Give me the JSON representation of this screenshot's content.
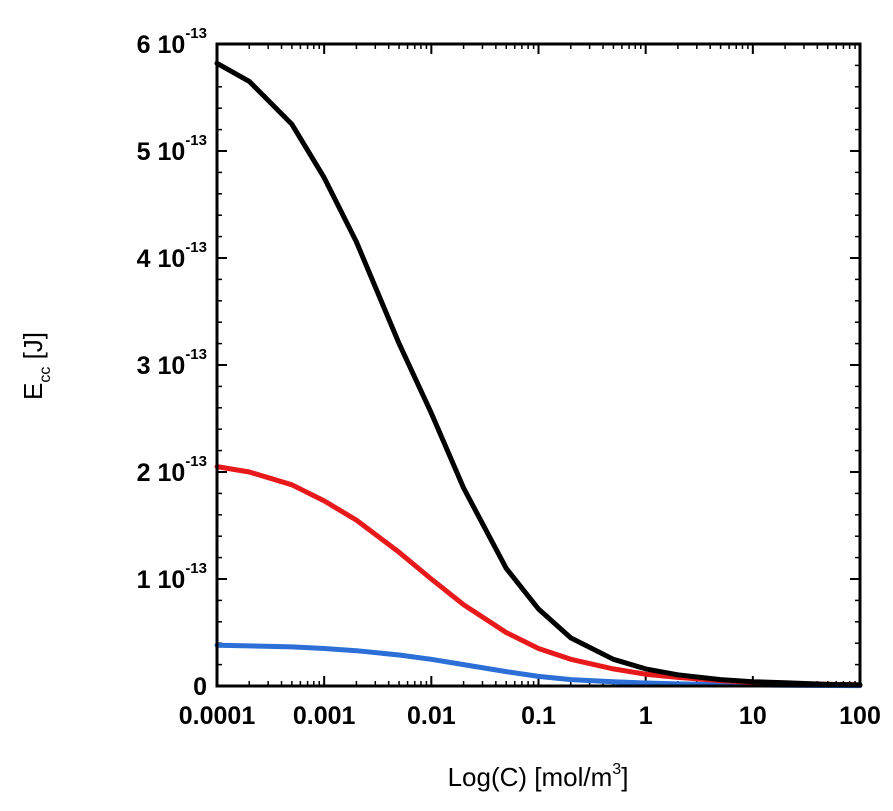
{
  "chart_data": {
    "type": "line",
    "title": "",
    "xscale": "log",
    "xlim": [
      0.0001,
      100
    ],
    "ylim": [
      0,
      6e-13
    ],
    "x_ticks": [
      0.0001,
      0.001,
      0.01,
      0.1,
      1,
      10,
      100
    ],
    "x_tick_labels": [
      "0.0001",
      "0.001",
      "0.01",
      "0.1",
      "1",
      "10",
      "100"
    ],
    "y_ticks": [
      0,
      1e-13,
      2e-13,
      3e-13,
      4e-13,
      5e-13,
      6e-13
    ],
    "y_tick_labels": [
      {
        "mantissa": "0",
        "exponent": ""
      },
      {
        "mantissa": "1 10",
        "exponent": "-13"
      },
      {
        "mantissa": "2 10",
        "exponent": "-13"
      },
      {
        "mantissa": "3 10",
        "exponent": "-13"
      },
      {
        "mantissa": "4 10",
        "exponent": "-13"
      },
      {
        "mantissa": "5 10",
        "exponent": "-13"
      },
      {
        "mantissa": "6 10",
        "exponent": "-13"
      }
    ],
    "xlabel": {
      "main": "Log(C) [mol/m",
      "sup": "3",
      "end": "]"
    },
    "ylabel": {
      "main": "E",
      "sub": "cc",
      "end": " [J]"
    },
    "grid": false,
    "series": [
      {
        "name": "black",
        "color": "#000000",
        "x": [
          0.0001,
          0.0002,
          0.0005,
          0.001,
          0.002,
          0.005,
          0.01,
          0.02,
          0.05,
          0.1,
          0.2,
          0.5,
          1,
          2,
          5,
          10,
          20,
          50,
          100
        ],
        "y": [
          5.82e-13,
          5.65e-13,
          5.25e-13,
          4.75e-13,
          4.15e-13,
          3.2e-13,
          2.55e-13,
          1.85e-13,
          1.1e-13,
          7.2e-14,
          4.5e-14,
          2.5e-14,
          1.6e-14,
          1.05e-14,
          6e-15,
          4e-15,
          3e-15,
          1.5e-15,
          1e-15
        ]
      },
      {
        "name": "red",
        "color": "#e8191b",
        "x": [
          0.0001,
          0.0002,
          0.0005,
          0.001,
          0.002,
          0.005,
          0.01,
          0.02,
          0.05,
          0.1,
          0.2,
          0.5,
          1,
          2,
          5,
          10,
          20,
          50,
          100
        ],
        "y": [
          2.05e-13,
          2e-13,
          1.88e-13,
          1.73e-13,
          1.55e-13,
          1.25e-13,
          1e-13,
          7.6e-14,
          5e-14,
          3.5e-14,
          2.5e-14,
          1.6e-14,
          1.1e-14,
          8e-15,
          5e-15,
          3.5e-15,
          2.5e-15,
          1.5e-15,
          1e-15
        ]
      },
      {
        "name": "blue",
        "color": "#2c6fd6",
        "x": [
          0.0001,
          0.0002,
          0.0005,
          0.001,
          0.002,
          0.005,
          0.01,
          0.02,
          0.05,
          0.1,
          0.2,
          0.5,
          1,
          2,
          5,
          10,
          20,
          50,
          100
        ],
        "y": [
          3.8e-14,
          3.75e-14,
          3.65e-14,
          3.5e-14,
          3.3e-14,
          2.9e-14,
          2.5e-14,
          2e-14,
          1.35e-14,
          9e-15,
          6e-15,
          4e-15,
          2.8e-15,
          2e-15,
          1.3e-15,
          1e-15,
          7e-16,
          5e-16,
          4e-16
        ]
      }
    ]
  }
}
